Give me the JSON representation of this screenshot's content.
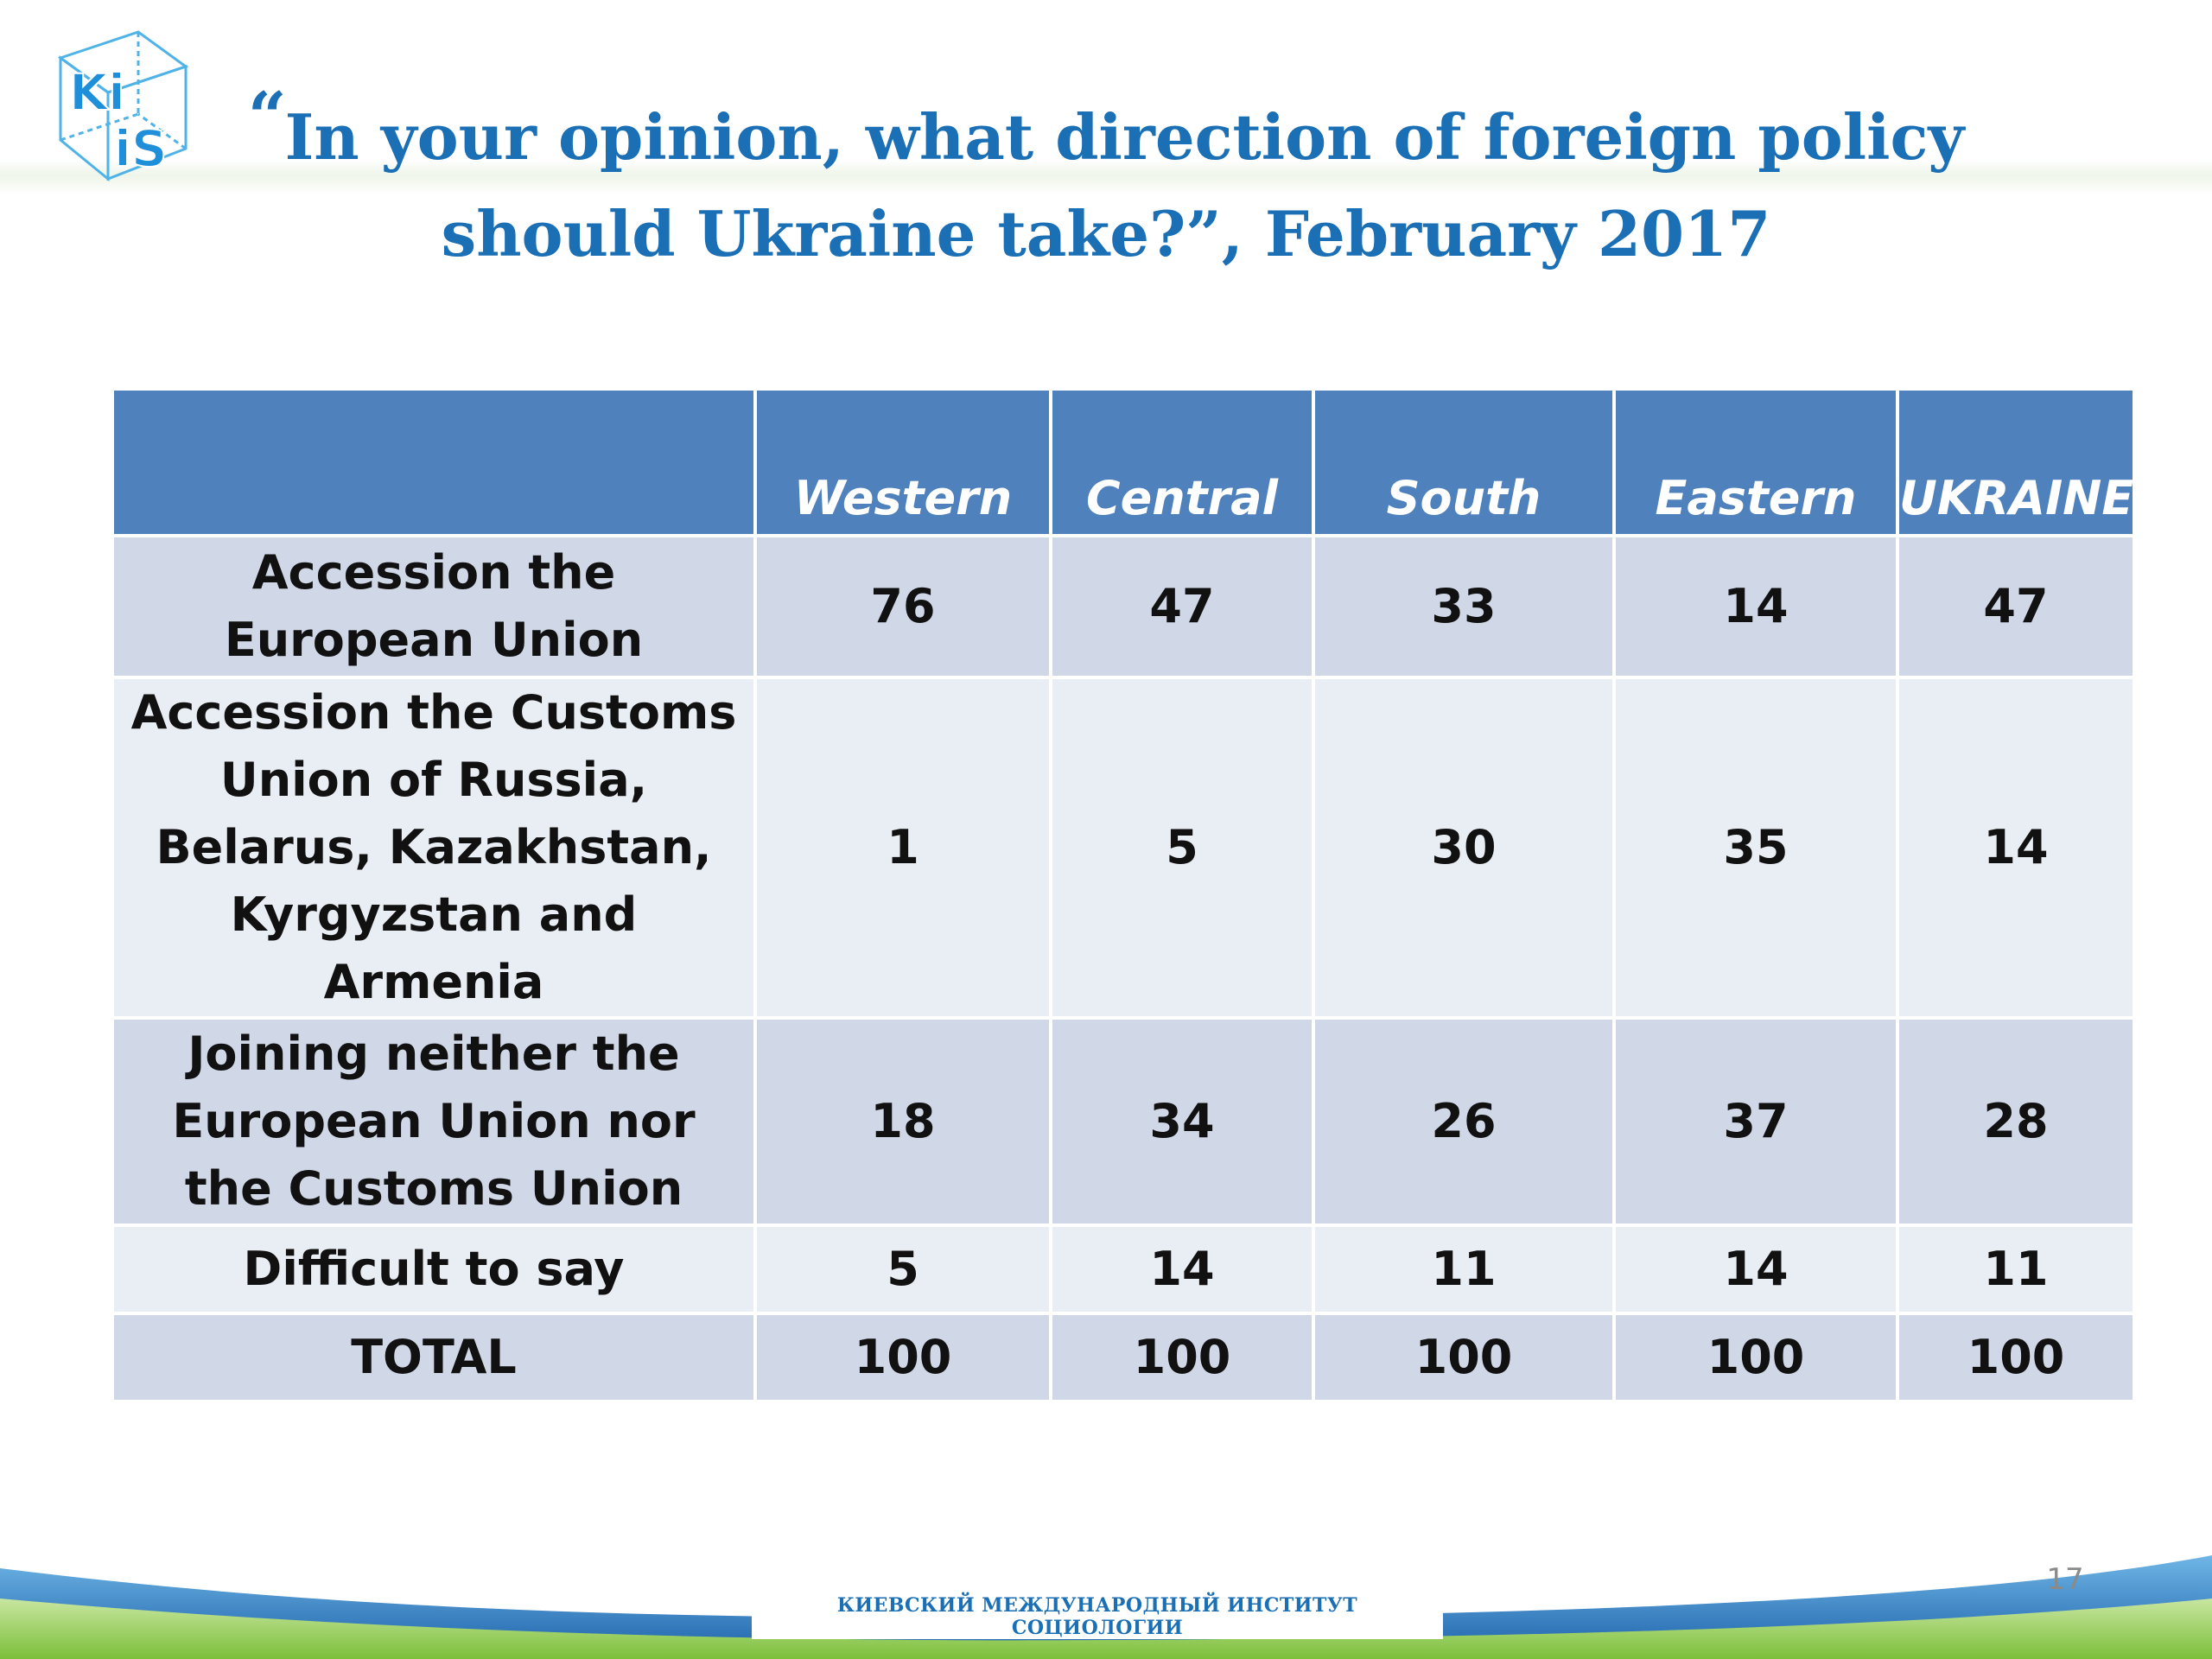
{
  "header": {
    "logo_text": "KIIS",
    "quote_mark": "“",
    "title_line1": "In your opinion, what direction of foreign policy",
    "title_line2": "should Ukraine take?”,  February 2017"
  },
  "table": {
    "columns": [
      "",
      "Western",
      "Central",
      "South",
      "Eastern",
      "UKRAINE"
    ],
    "rows": [
      {
        "label": "Accession the European Union",
        "values": [
          "76",
          "47",
          "33",
          "14",
          "47"
        ]
      },
      {
        "label": "Accession the Customs Union of Russia, Belarus, Kazakhstan, Kyrgyzstan and Armenia",
        "values": [
          "1",
          "5",
          "30",
          "35",
          "14"
        ]
      },
      {
        "label": "Joining neither the European Union nor the Customs Union",
        "values": [
          "18",
          "34",
          "26",
          "37",
          "28"
        ]
      },
      {
        "label": "Difficult to say",
        "values": [
          "5",
          "14",
          "11",
          "14",
          "11"
        ]
      },
      {
        "label": "TOTAL",
        "values": [
          "100",
          "100",
          "100",
          "100",
          "100"
        ]
      }
    ]
  },
  "footer": {
    "institute": "КИЕВСКИЙ МЕЖДУНАРОДНЫЙ ИНСТИТУТ СОЦИОЛОГИИ",
    "page_number": "17"
  },
  "colors": {
    "title_blue": "#1a6fb5",
    "header_fill": "#4f81bd",
    "row_dark": "#d0d8e8",
    "row_light": "#e9edf4",
    "footer_green": "#8dc63f"
  }
}
